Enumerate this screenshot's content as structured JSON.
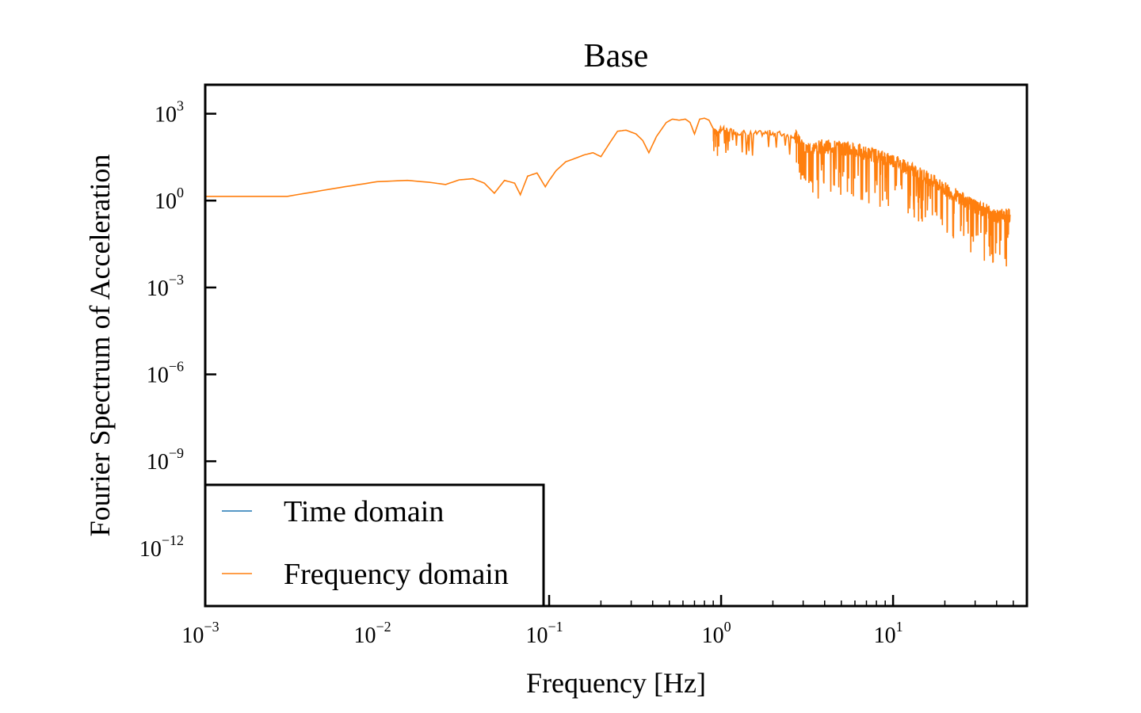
{
  "chart_data": {
    "type": "line",
    "title": "Base",
    "xlabel": "Frequency [Hz]",
    "ylabel": "Fourier Spectrum of Acceleration",
    "xscale": "log",
    "yscale": "log",
    "xlim": [
      0.001,
      60
    ],
    "ylim": [
      1e-14,
      10000
    ],
    "x_ticks": [
      {
        "value": 0.001,
        "base": "10",
        "exp": "−3"
      },
      {
        "value": 0.01,
        "base": "10",
        "exp": "−2"
      },
      {
        "value": 0.1,
        "base": "10",
        "exp": "−1"
      },
      {
        "value": 1,
        "base": "10",
        "exp": "0"
      },
      {
        "value": 10,
        "base": "10",
        "exp": "1"
      }
    ],
    "y_ticks": [
      {
        "value": 1e-12,
        "base": "10",
        "exp": "−12"
      },
      {
        "value": 1e-09,
        "base": "10",
        "exp": "−9"
      },
      {
        "value": 1e-06,
        "base": "10",
        "exp": "−6"
      },
      {
        "value": 0.001,
        "base": "10",
        "exp": "−3"
      },
      {
        "value": 1,
        "base": "10",
        "exp": "0"
      },
      {
        "value": 1000,
        "base": "10",
        "exp": "3"
      }
    ],
    "grid": false,
    "legend": {
      "position": "lower-left",
      "entries": [
        "Time domain",
        "Frequency domain"
      ]
    },
    "series": [
      {
        "name": "Time domain",
        "color": "#1f77b4",
        "x": [],
        "y": []
      },
      {
        "name": "Frequency domain",
        "color": "#ff7f0e",
        "x": [
          0.001,
          0.003,
          0.006,
          0.01,
          0.015,
          0.02,
          0.025,
          0.03,
          0.036,
          0.042,
          0.048,
          0.055,
          0.063,
          0.068,
          0.075,
          0.085,
          0.095,
          0.1,
          0.11,
          0.125,
          0.14,
          0.16,
          0.18,
          0.2,
          0.22,
          0.25,
          0.28,
          0.32,
          0.35,
          0.38,
          0.42,
          0.48,
          0.52,
          0.57,
          0.62,
          0.66,
          0.7,
          0.75,
          0.8,
          0.85,
          0.9,
          0.95,
          1.0,
          1.2,
          1.5,
          2.0,
          2.7,
          3.0,
          4.0,
          5.0,
          6.0,
          8.0,
          10.0,
          13.0,
          16.0,
          20.0,
          25.0,
          30.0,
          35.0,
          40.0,
          48.0
        ],
        "y": [
          1.4,
          1.4,
          2.8,
          4.5,
          5.0,
          4.3,
          3.6,
          5.2,
          5.7,
          4.0,
          1.8,
          5.0,
          4.0,
          1.6,
          7.0,
          9.0,
          3.0,
          5.0,
          11.0,
          22.0,
          28.0,
          38.0,
          45.0,
          33.0,
          80.0,
          250.0,
          270.0,
          200.0,
          120.0,
          45.0,
          160.0,
          500.0,
          650.0,
          600.0,
          650.0,
          500.0,
          200.0,
          650.0,
          700.0,
          600.0,
          300.0,
          200.0,
          300.0,
          240.0,
          200.0,
          220.0,
          170.0,
          60.0,
          75.0,
          65.0,
          55.0,
          35.0,
          25.0,
          11.0,
          6.0,
          2.5,
          1.2,
          0.6,
          0.45,
          0.3,
          0.3
        ]
      }
    ]
  }
}
